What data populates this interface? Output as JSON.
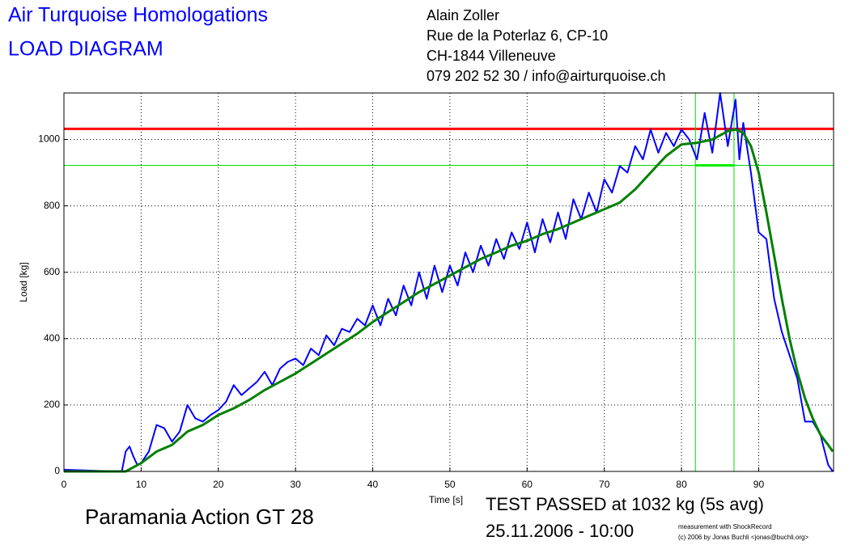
{
  "chart_data": {
    "type": "line",
    "title": "Air Turquoise Homologations",
    "subtitle": "LOAD DIAGRAM",
    "address": [
      "Alain Zoller",
      "Rue de la Poterlaz 6, CP-10",
      "CH-1844 Villeneuve",
      "079 202 52 30 / info@airturquoise.ch"
    ],
    "glider": "Paramania Action GT 28",
    "result": "TEST PASSED at 1032 kg (5s avg)",
    "date": "25.11.2006 - 10:00",
    "credits": [
      "measurement with ShockRecord",
      "(c) 2006 by Jonas Buchli <jonas@buchli.org>"
    ],
    "x_label": "Time [s]",
    "y_label": "Load [kg]",
    "xlim": [
      0,
      99.7
    ],
    "ylim": [
      0,
      1140
    ],
    "xticks": [
      0,
      10,
      20,
      30,
      40,
      50,
      60,
      70,
      80,
      90
    ],
    "yticks": [
      0,
      200,
      400,
      600,
      800,
      1000
    ],
    "grid": true,
    "series": [
      {
        "color": "#0000ff",
        "x": [
          0,
          7,
          7.5,
          8,
          8.5,
          9,
          9.5,
          10,
          11,
          12,
          13,
          14,
          15,
          16,
          17,
          18,
          19,
          20,
          21,
          22,
          23,
          24,
          25,
          26,
          27,
          28,
          29,
          30,
          31,
          32,
          33,
          34,
          35,
          36,
          37,
          38,
          39,
          40,
          41,
          42,
          43,
          44,
          45,
          46,
          47,
          48,
          49,
          50,
          51,
          52,
          53,
          54,
          55,
          56,
          57,
          58,
          59,
          60,
          61,
          62,
          63,
          64,
          65,
          66,
          67,
          68,
          69,
          70,
          71,
          72,
          73,
          74,
          75,
          76,
          77,
          78,
          79,
          80,
          81,
          82,
          83,
          84,
          85,
          86,
          87,
          87.5,
          88,
          89,
          90,
          91,
          92,
          93,
          94,
          95,
          96,
          97,
          98,
          99,
          99.6
        ],
        "values": [
          5,
          0,
          0,
          60,
          75,
          45,
          20,
          25,
          60,
          140,
          130,
          90,
          120,
          200,
          160,
          150,
          170,
          185,
          210,
          260,
          230,
          250,
          270,
          300,
          260,
          310,
          330,
          340,
          320,
          370,
          350,
          410,
          380,
          430,
          420,
          460,
          440,
          500,
          440,
          520,
          470,
          560,
          500,
          600,
          520,
          620,
          540,
          620,
          560,
          660,
          600,
          680,
          620,
          700,
          640,
          720,
          670,
          750,
          660,
          760,
          690,
          780,
          700,
          820,
          760,
          840,
          780,
          880,
          840,
          920,
          900,
          980,
          940,
          1030,
          960,
          1020,
          980,
          1030,
          1000,
          940,
          1080,
          960,
          1140,
          980,
          1120,
          940,
          1050,
          900,
          720,
          700,
          520,
          420,
          350,
          280,
          150,
          150,
          110,
          20,
          0
        ]
      },
      {
        "color": "#008000",
        "x": [
          0,
          8,
          10,
          12,
          14,
          16,
          18,
          20,
          22,
          24,
          26,
          28,
          30,
          32,
          34,
          36,
          38,
          40,
          42,
          44,
          46,
          48,
          50,
          52,
          54,
          56,
          58,
          60,
          62,
          64,
          66,
          68,
          70,
          72,
          74,
          76,
          78,
          80,
          82,
          84,
          86,
          87,
          88,
          89,
          90,
          91,
          92,
          93,
          94,
          95,
          96,
          97,
          98,
          99,
          99.6
        ],
        "values": [
          0,
          0,
          25,
          60,
          80,
          120,
          140,
          170,
          190,
          215,
          245,
          270,
          295,
          325,
          355,
          385,
          415,
          450,
          480,
          510,
          540,
          565,
          590,
          615,
          640,
          660,
          680,
          695,
          715,
          730,
          750,
          770,
          790,
          810,
          850,
          900,
          950,
          985,
          990,
          1000,
          1025,
          1030,
          1020,
          980,
          900,
          780,
          650,
          520,
          400,
          300,
          220,
          160,
          110,
          80,
          60
        ]
      }
    ],
    "hlines": [
      {
        "value": 1032,
        "color": "#ff0000"
      },
      {
        "value": 922,
        "color": "#00dd00"
      }
    ],
    "vlines": [
      {
        "value": 81.8,
        "color": "#00dd00"
      },
      {
        "value": 86.8,
        "color": "#00dd00"
      }
    ],
    "segment": {
      "x": [
        81.8,
        86.8
      ],
      "y": 922,
      "color": "#00ee00"
    }
  }
}
